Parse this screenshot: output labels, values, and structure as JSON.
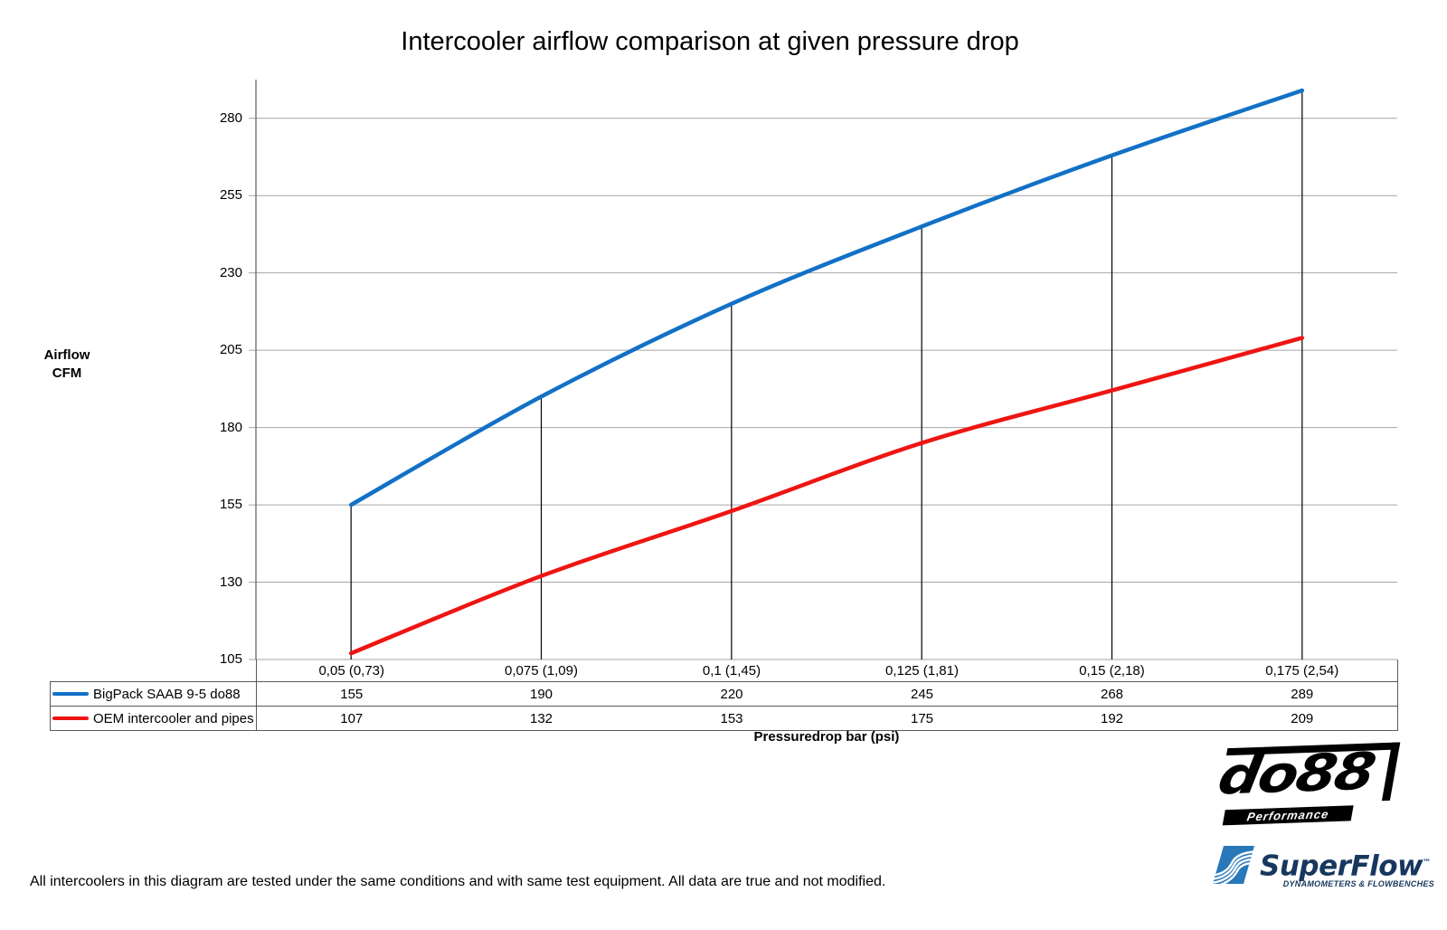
{
  "page": {
    "title": "Intercooler airflow comparison at given pressure drop"
  },
  "y_axis": {
    "title_line1": "Airflow",
    "title_line2": "CFM",
    "ticks": [
      "280",
      "255",
      "230",
      "205",
      "180",
      "155",
      "130",
      "105"
    ]
  },
  "x_axis": {
    "title": "Pressuredrop bar (psi)"
  },
  "chart_data": {
    "type": "line",
    "title": "Intercooler airflow comparison at given pressure drop",
    "xlabel": "Pressuredrop bar (psi)",
    "ylabel": "Airflow CFM",
    "categories": [
      "0,05 (0,73)",
      "0,075 (1,09)",
      "0,1 (1,45)",
      "0,125 (1,81)",
      "0,15 (2,18)",
      "0,175 (2,54)"
    ],
    "series": [
      {
        "name": "BigPack SAAB 9-5 do88",
        "color": "#1271C6",
        "values": [
          155,
          190,
          220,
          245,
          268,
          289
        ]
      },
      {
        "name": "OEM intercooler and pipes",
        "color": "#EE1512",
        "values": [
          107,
          132,
          153,
          175,
          192,
          209
        ]
      }
    ],
    "ylim": [
      105,
      292.5
    ],
    "yticks": [
      280,
      255,
      230,
      205,
      180,
      155,
      130,
      105
    ],
    "grid": true,
    "droplines": true,
    "smooth": true,
    "legend_position": "table-left",
    "gridline_color": "#A6A6A6",
    "axis_color": "#595959",
    "dropline_color": "#000000"
  },
  "logos": {
    "do88": {
      "text": "do88",
      "subtext": "Performance"
    },
    "superflow": {
      "text": "SuperFlow",
      "tm": "™",
      "subtext": "DYNAMOMETERS & FLOWBENCHES"
    }
  },
  "footer": {
    "disclaimer": "All intercoolers in this diagram are tested under the same conditions and with same test equipment. All data are true and not modified."
  }
}
